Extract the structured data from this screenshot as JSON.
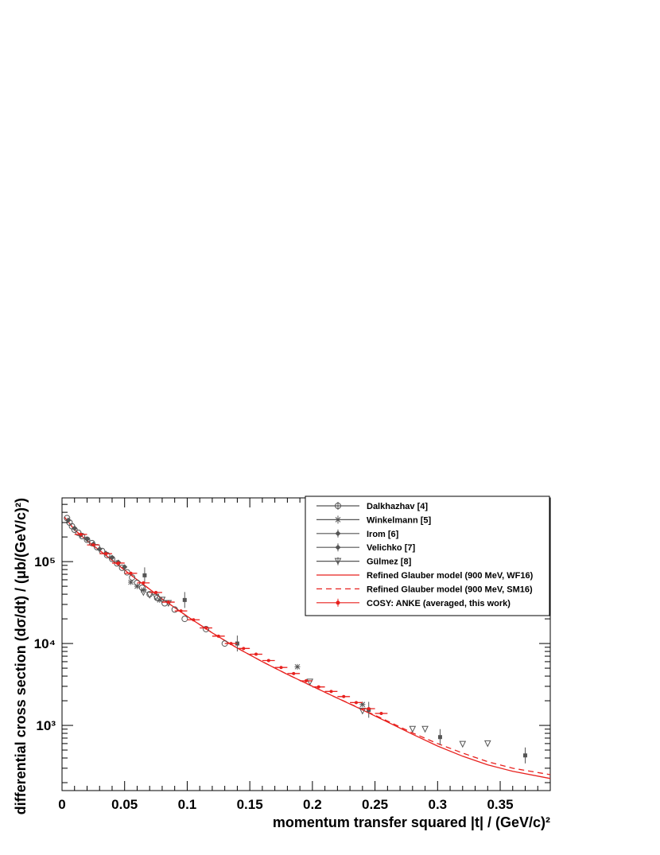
{
  "chart_data": {
    "type": "scatter",
    "xlabel": "momentum transfer squared |t| / (GeV/c)²",
    "ylabel": "differential cross section (dσ/dt) / (μb/(GeV/c)²)",
    "xlim": [
      0,
      0.39
    ],
    "ylim": [
      160,
      600000
    ],
    "yscale": "log",
    "x_ticks": [
      0,
      0.05,
      0.1,
      0.15,
      0.2,
      0.25,
      0.3,
      0.35
    ],
    "x_tick_labels": [
      "0",
      "0.05",
      "0.1",
      "0.15",
      "0.2",
      "0.25",
      "0.3",
      "0.35"
    ],
    "y_ticks": [
      1000,
      10000,
      100000
    ],
    "y_tick_labels": [
      "10³",
      "10⁴",
      "10⁵"
    ],
    "legend_position": "top-right",
    "series": [
      {
        "name": "Dalkhazhav [4]",
        "marker": "open-circle",
        "color": "#555555",
        "points": [
          [
            0.004,
            340000
          ],
          [
            0.006,
            300000
          ],
          [
            0.008,
            270000
          ],
          [
            0.01,
            245000
          ],
          [
            0.013,
            225000
          ],
          [
            0.016,
            205000
          ],
          [
            0.02,
            185000
          ],
          [
            0.024,
            168000
          ],
          [
            0.028,
            150000
          ],
          [
            0.032,
            135000
          ],
          [
            0.036,
            120000
          ],
          [
            0.04,
            108000
          ],
          [
            0.044,
            95000
          ],
          [
            0.048,
            84000
          ],
          [
            0.052,
            74000
          ],
          [
            0.056,
            64000
          ],
          [
            0.06,
            55000
          ],
          [
            0.064,
            48000
          ],
          [
            0.07,
            40000
          ],
          [
            0.076,
            36000
          ],
          [
            0.082,
            31000
          ],
          [
            0.09,
            26000
          ],
          [
            0.098,
            20000
          ],
          [
            0.115,
            15000
          ],
          [
            0.13,
            10000
          ]
        ]
      },
      {
        "name": "Winkelmann [5]",
        "marker": "star",
        "color": "#555555",
        "points": [
          [
            0.055,
            56000
          ],
          [
            0.06,
            50000
          ],
          [
            0.065,
            45000
          ],
          [
            0.078,
            34000
          ],
          [
            0.188,
            5200
          ],
          [
            0.24,
            1800
          ]
        ]
      },
      {
        "name": "Irom [6]",
        "marker": "filled-square",
        "color": "#555555",
        "points": [
          [
            0.066,
            68000
          ],
          [
            0.098,
            34000
          ],
          [
            0.14,
            10000
          ],
          [
            0.245,
            1550
          ],
          [
            0.302,
            720
          ],
          [
            0.37,
            430
          ]
        ]
      },
      {
        "name": "Velichko [7]",
        "marker": "filled-diamond",
        "color": "#555555",
        "points": [
          [
            0.005,
            320000
          ],
          [
            0.01,
            255000
          ],
          [
            0.015,
            212000
          ],
          [
            0.02,
            188000
          ],
          [
            0.025,
            163000
          ],
          [
            0.03,
            142000
          ],
          [
            0.035,
            126000
          ],
          [
            0.04,
            112000
          ],
          [
            0.045,
            98000
          ],
          [
            0.05,
            86000
          ]
        ]
      },
      {
        "name": "Gülmez [8]",
        "marker": "open-triangle-down",
        "color": "#555555",
        "points": [
          [
            0.065,
            42000
          ],
          [
            0.07,
            39000
          ],
          [
            0.075,
            37000
          ],
          [
            0.08,
            34000
          ],
          [
            0.085,
            31000
          ],
          [
            0.198,
            3400
          ],
          [
            0.24,
            1500
          ],
          [
            0.28,
            900
          ],
          [
            0.29,
            900
          ],
          [
            0.32,
            590
          ],
          [
            0.34,
            600
          ]
        ]
      },
      {
        "name": "Refined Glauber model (900 MeV, WF16)",
        "marker": "line-solid",
        "color": "#e8211e",
        "points": [
          [
            0.002,
            350000
          ],
          [
            0.01,
            245000
          ],
          [
            0.02,
            180000
          ],
          [
            0.03,
            137000
          ],
          [
            0.04,
            104000
          ],
          [
            0.05,
            79000
          ],
          [
            0.06,
            60000
          ],
          [
            0.07,
            46000
          ],
          [
            0.08,
            35000
          ],
          [
            0.09,
            27500
          ],
          [
            0.1,
            21500
          ],
          [
            0.12,
            13500
          ],
          [
            0.14,
            8800
          ],
          [
            0.16,
            6000
          ],
          [
            0.18,
            4200
          ],
          [
            0.2,
            3000
          ],
          [
            0.22,
            2150
          ],
          [
            0.24,
            1550
          ],
          [
            0.26,
            1100
          ],
          [
            0.28,
            780
          ],
          [
            0.3,
            560
          ],
          [
            0.32,
            420
          ],
          [
            0.34,
            330
          ],
          [
            0.36,
            275
          ],
          [
            0.39,
            225
          ]
        ]
      },
      {
        "name": "Refined Glauber model (900 MeV, SM16)",
        "marker": "line-dashed",
        "color": "#e8211e",
        "points": [
          [
            0.002,
            350000
          ],
          [
            0.01,
            245000
          ],
          [
            0.02,
            180000
          ],
          [
            0.03,
            137000
          ],
          [
            0.04,
            104000
          ],
          [
            0.05,
            79000
          ],
          [
            0.06,
            60000
          ],
          [
            0.07,
            46000
          ],
          [
            0.08,
            35000
          ],
          [
            0.09,
            27500
          ],
          [
            0.1,
            21500
          ],
          [
            0.12,
            13500
          ],
          [
            0.14,
            8800
          ],
          [
            0.16,
            6000
          ],
          [
            0.18,
            4200
          ],
          [
            0.2,
            3000
          ],
          [
            0.22,
            2150
          ],
          [
            0.24,
            1570
          ],
          [
            0.26,
            1130
          ],
          [
            0.28,
            810
          ],
          [
            0.3,
            600
          ],
          [
            0.32,
            460
          ],
          [
            0.34,
            360
          ],
          [
            0.36,
            300
          ],
          [
            0.39,
            250
          ]
        ]
      },
      {
        "name": "COSY: ANKE (averaged, this work)",
        "marker": "filled-circle-xerr",
        "color": "#e8211e",
        "points": [
          [
            0.015,
            215000
          ],
          [
            0.025,
            160000
          ],
          [
            0.035,
            125000
          ],
          [
            0.045,
            96000
          ],
          [
            0.055,
            72000
          ],
          [
            0.065,
            55000
          ],
          [
            0.075,
            42000
          ],
          [
            0.085,
            32000
          ],
          [
            0.095,
            25000
          ],
          [
            0.105,
            19500
          ],
          [
            0.115,
            15500
          ],
          [
            0.125,
            12300
          ],
          [
            0.135,
            10000
          ],
          [
            0.145,
            8700
          ],
          [
            0.155,
            7400
          ],
          [
            0.165,
            6200
          ],
          [
            0.175,
            5100
          ],
          [
            0.185,
            4300
          ],
          [
            0.195,
            3500
          ],
          [
            0.205,
            2950
          ],
          [
            0.215,
            2600
          ],
          [
            0.225,
            2250
          ],
          [
            0.235,
            1900
          ],
          [
            0.245,
            1600
          ],
          [
            0.255,
            1400
          ]
        ],
        "x_half_width": 0.005
      }
    ]
  }
}
